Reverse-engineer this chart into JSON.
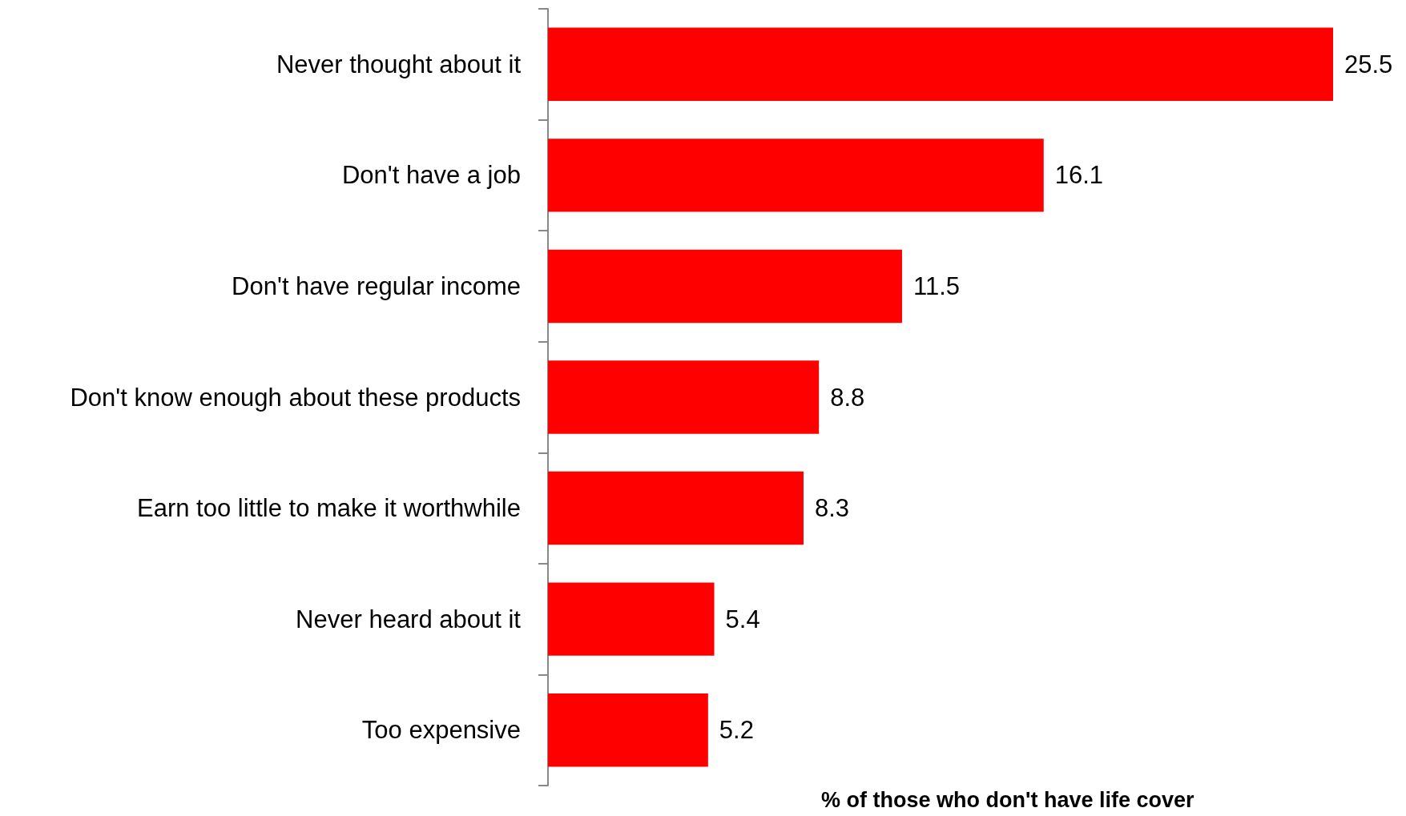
{
  "chart_data": {
    "type": "bar",
    "orientation": "horizontal",
    "categories": [
      "Never thought about it",
      "Don't have a job",
      "Don't have regular income",
      "Don't know enough about these products",
      "Earn too little to make it worthwhile",
      "Never heard about it",
      "Too expensive"
    ],
    "values": [
      25.5,
      16.1,
      11.5,
      8.8,
      8.3,
      5.4,
      5.2
    ],
    "color": "#ff0000",
    "data_labels": true,
    "xlabel": "% of those who don't have life cover"
  }
}
